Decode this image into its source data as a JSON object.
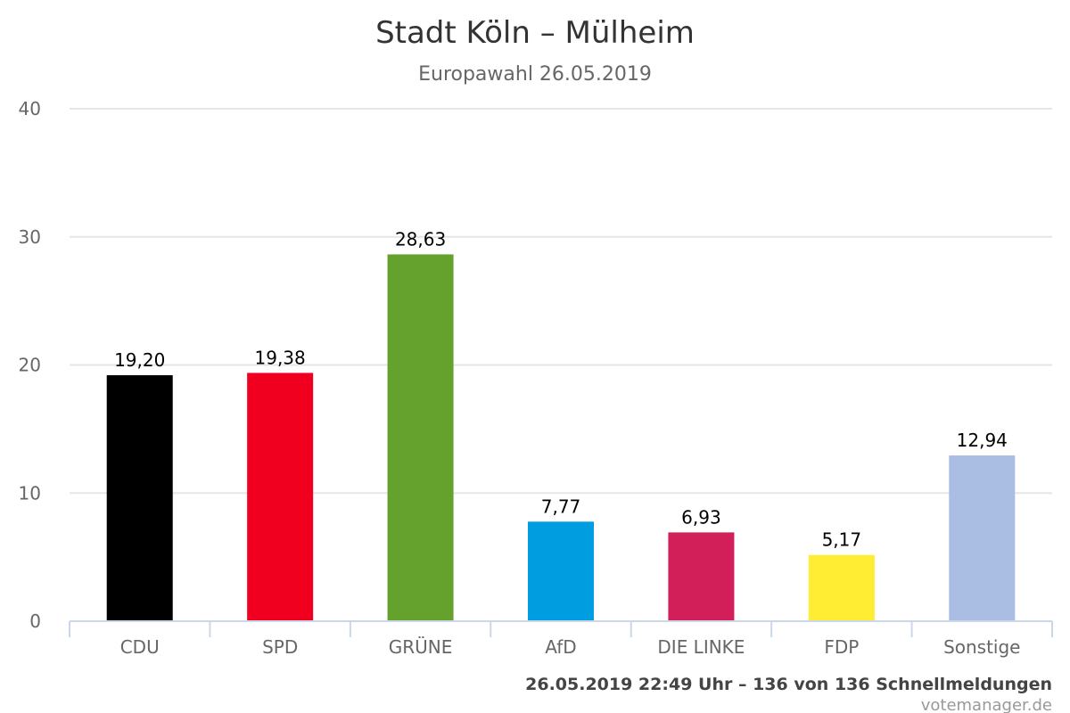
{
  "chart_data": {
    "type": "bar",
    "title": "Stadt Köln – Mülheim",
    "subtitle": "Europawahl 26.05.2019",
    "categories": [
      "CDU",
      "SPD",
      "GRÜNE",
      "AfD",
      "DIE LINKE",
      "FDP",
      "Sonstige"
    ],
    "values": [
      19.2,
      19.38,
      28.63,
      7.77,
      6.93,
      5.17,
      12.94
    ],
    "value_labels": [
      "19,20",
      "19,38",
      "28,63",
      "7,77",
      "6,93",
      "5,17",
      "12,94"
    ],
    "colors": [
      "#000000",
      "#f0001e",
      "#64a12d",
      "#009ee0",
      "#d21f5a",
      "#ffed34",
      "#aabde3"
    ],
    "ylim": [
      0,
      40
    ],
    "yticks": [
      0,
      10,
      20,
      30,
      40
    ],
    "grid": true,
    "legend": "none",
    "xlabel": "",
    "ylabel": ""
  },
  "footer": {
    "status": "26.05.2019 22:49 Uhr – 136 von 136 Schnellmeldungen",
    "credit": "votemanager.de"
  }
}
